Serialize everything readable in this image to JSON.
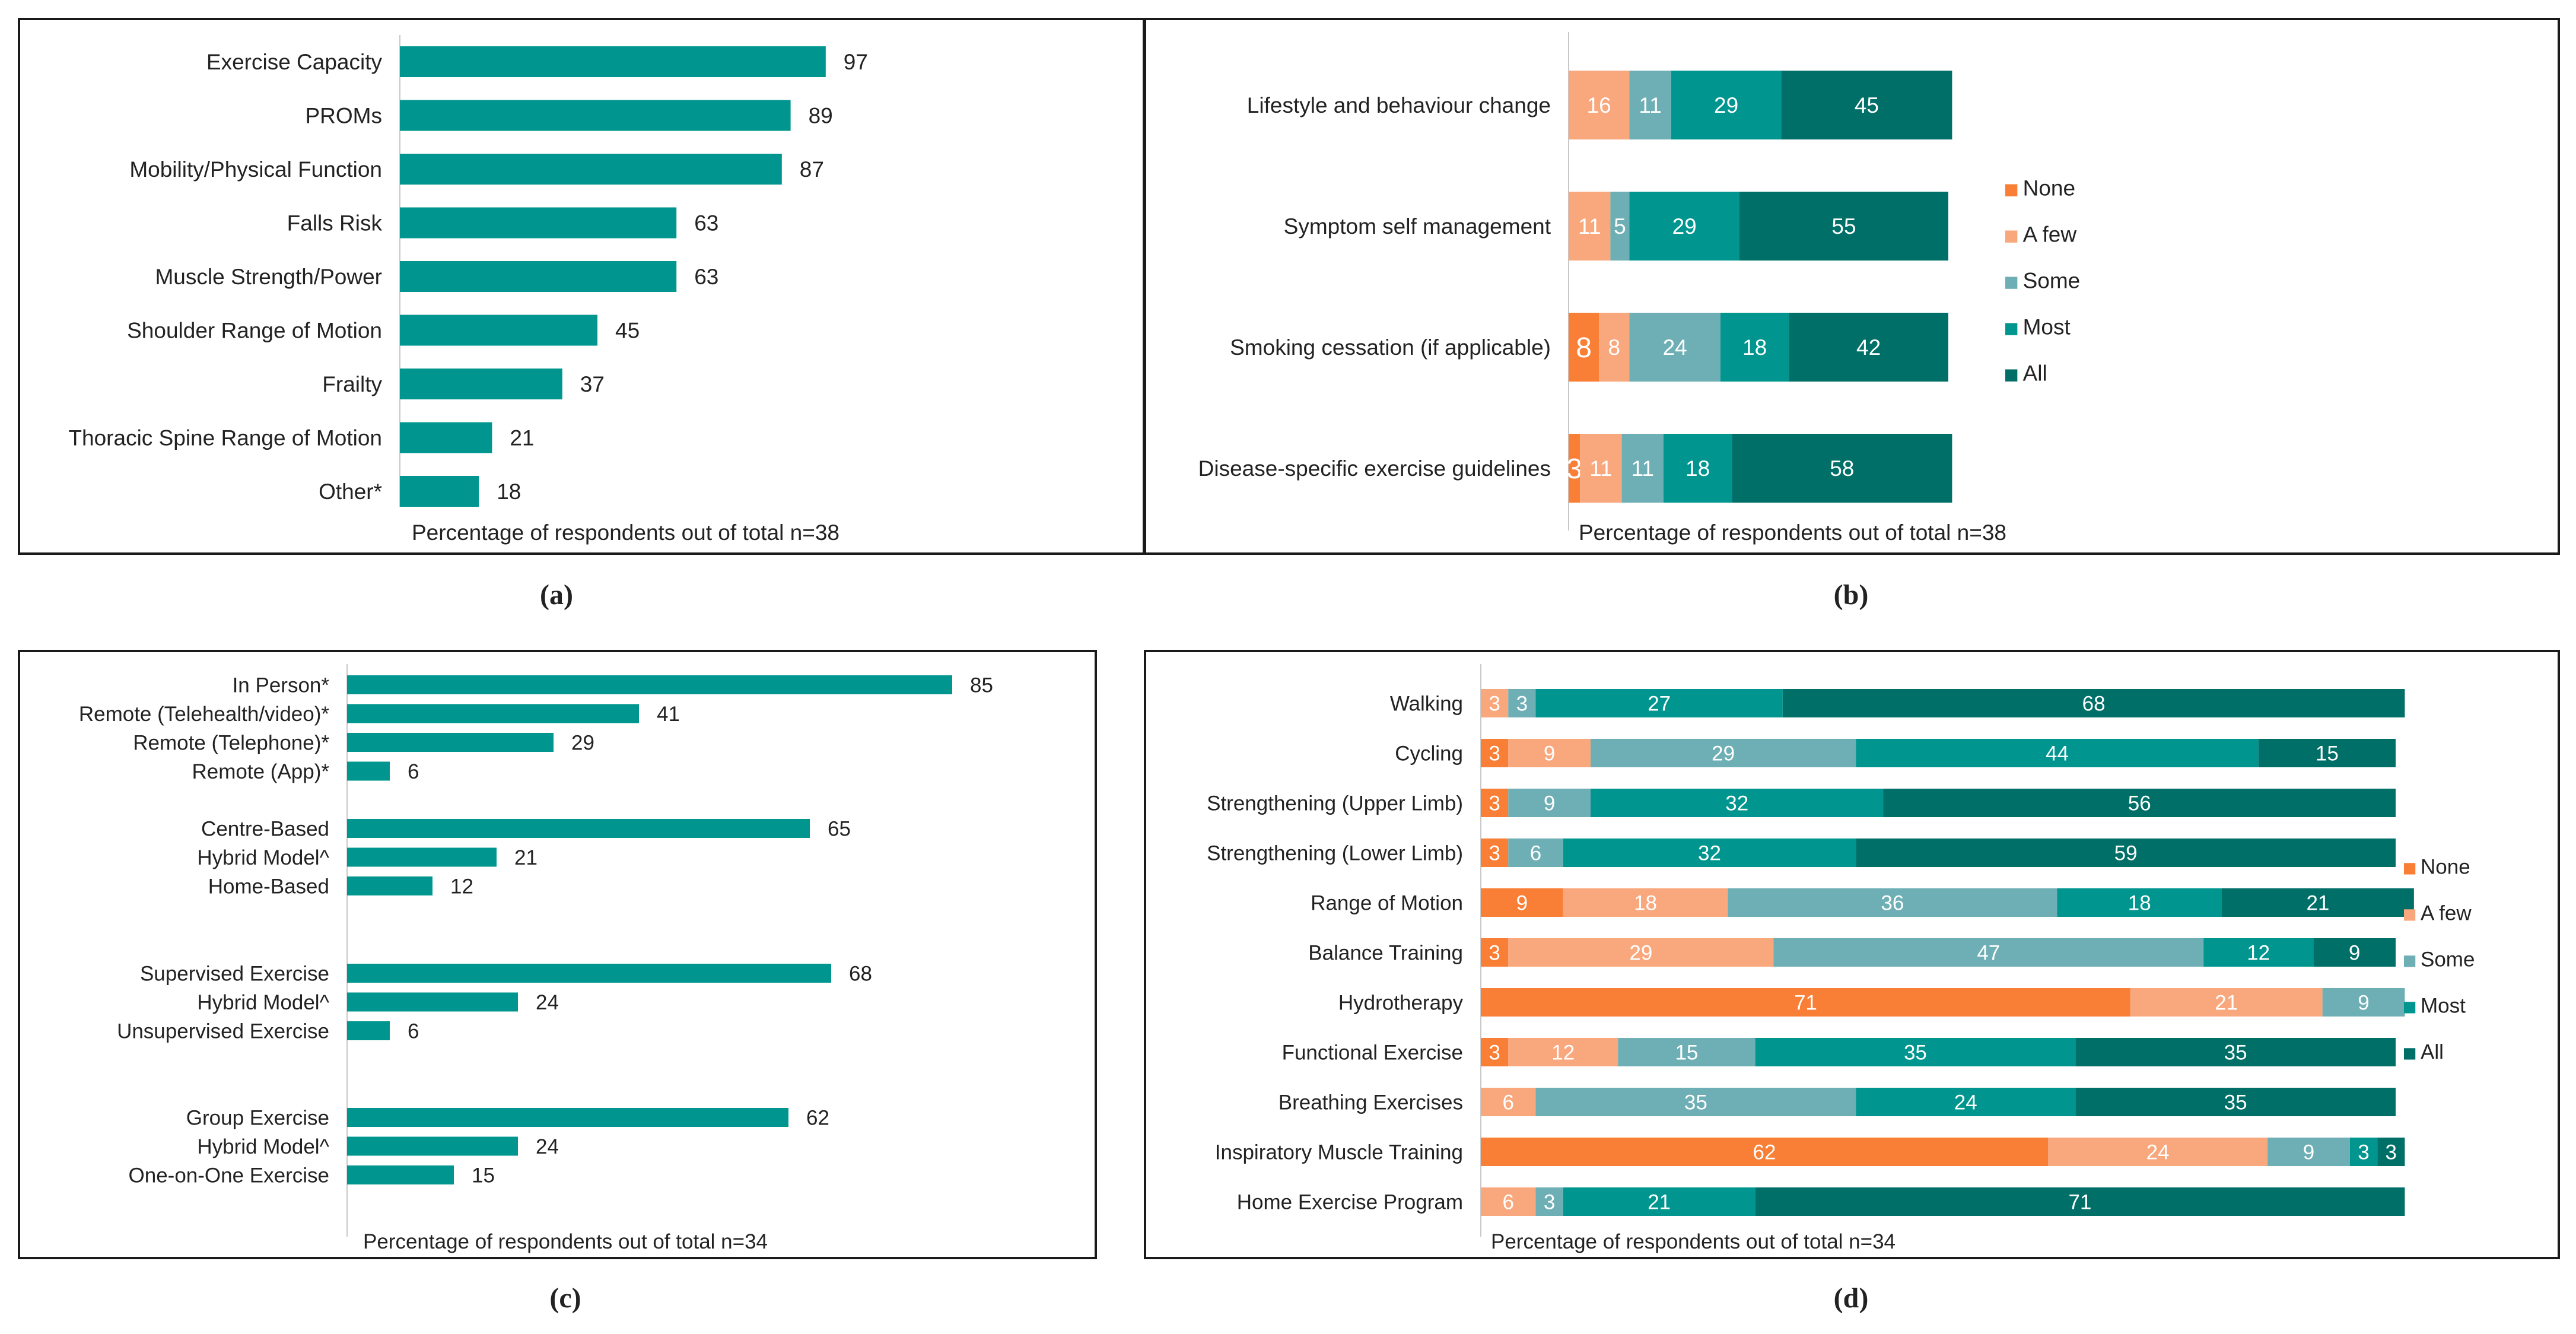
{
  "colors": {
    "teal": "#00968F",
    "none": "#F97F37",
    "a_few": "#F9A77C",
    "some": "#6EAFB5",
    "most": "#00968F",
    "all": "#006F68",
    "axis": "#C8C8C8"
  },
  "chart_data": [
    {
      "id": "a",
      "type": "bar",
      "caption": "(a)",
      "xlabel": "Percentage of respondents out of total n=38",
      "categories": [
        "Exercise Capacity",
        "PROMs",
        "Mobility/Physical Function",
        "Falls Risk",
        "Muscle Strength/Power",
        "Shoulder Range of Motion",
        "Frailty",
        "Thoracic Spine Range of Motion",
        "Other*"
      ],
      "values": [
        97,
        89,
        87,
        63,
        63,
        45,
        37,
        21,
        18
      ],
      "xlim": [
        0,
        100
      ]
    },
    {
      "id": "b",
      "type": "bar",
      "stacked": true,
      "caption": "(b)",
      "xlabel": "Percentage of respondents out of total n=38",
      "legend_position": "right",
      "categories": [
        "Lifestyle and behaviour change",
        "Symptom self management",
        "Smoking cessation (if applicable)",
        "Disease-specific exercise guidelines"
      ],
      "series": [
        {
          "name": "None",
          "values": [
            0,
            0,
            8,
            3
          ]
        },
        {
          "name": "A few",
          "values": [
            16,
            11,
            8,
            11
          ]
        },
        {
          "name": "Some",
          "values": [
            11,
            5,
            24,
            11
          ]
        },
        {
          "name": "Most",
          "values": [
            29,
            29,
            18,
            18
          ]
        },
        {
          "name": "All",
          "values": [
            45,
            55,
            42,
            58
          ]
        }
      ]
    },
    {
      "id": "c",
      "type": "bar",
      "caption": "(c)",
      "xlabel": "Percentage of respondents out of total n=34",
      "groups": [
        {
          "categories": [
            "In Person*",
            "Remote (Telehealth/video)*",
            "Remote (Telephone)*",
            "Remote (App)*"
          ],
          "values": [
            85,
            41,
            29,
            6
          ]
        },
        {
          "categories": [
            "Centre-Based",
            "Hybrid Model^",
            "Home-Based"
          ],
          "values": [
            65,
            21,
            12
          ]
        },
        {
          "categories": [
            "Supervised Exercise",
            "Hybrid Model^",
            "Unsupervised Exercise"
          ],
          "values": [
            68,
            24,
            6
          ]
        },
        {
          "categories": [
            "Group Exercise",
            "Hybrid Model^",
            "One-on-One Exercise"
          ],
          "values": [
            62,
            24,
            15
          ]
        }
      ],
      "xlim": [
        0,
        100
      ]
    },
    {
      "id": "d",
      "type": "bar",
      "stacked": true,
      "caption": "(d)",
      "xlabel": "Percentage of respondents out of total n=34",
      "legend_position": "right",
      "categories": [
        "Walking",
        "Cycling",
        "Strengthening (Upper Limb)",
        "Strengthening (Lower Limb)",
        "Range of Motion",
        "Balance Training",
        "Hydrotherapy",
        "Functional Exercise",
        "Breathing Exercises",
        "Inspiratory Muscle Training",
        "Home Exercise Program"
      ],
      "series": [
        {
          "name": "None",
          "values": [
            0,
            3,
            3,
            3,
            9,
            3,
            71,
            3,
            0,
            62,
            0
          ]
        },
        {
          "name": "A few",
          "values": [
            3,
            9,
            0,
            0,
            18,
            29,
            21,
            12,
            6,
            24,
            6
          ]
        },
        {
          "name": "Some",
          "values": [
            3,
            29,
            9,
            6,
            36,
            47,
            9,
            15,
            35,
            9,
            3
          ]
        },
        {
          "name": "Most",
          "values": [
            27,
            44,
            32,
            32,
            18,
            12,
            0,
            35,
            24,
            3,
            21
          ]
        },
        {
          "name": "All",
          "values": [
            68,
            15,
            56,
            59,
            21,
            9,
            0,
            35,
            35,
            3,
            71
          ]
        }
      ]
    }
  ]
}
